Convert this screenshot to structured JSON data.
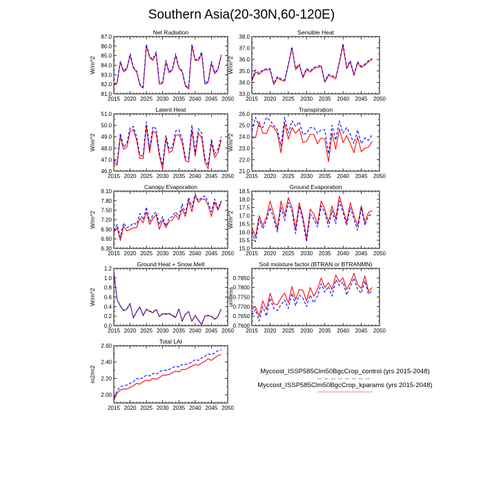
{
  "figure": {
    "title": "Southern Asia(20-30N,60-120E)"
  },
  "legend": {
    "entries": [
      {
        "label": "Myccost_ISSP585Clm50BgcCrop_control (yrs 2015-2048)",
        "color": "#0000ff",
        "style": "dashed"
      },
      {
        "label": "Myccost_ISSP585Clm50BgcCrop_kparams (yrs 2015-2048)",
        "color": "#ff0000",
        "style": "solid"
      }
    ]
  },
  "colors": {
    "control": "#0000ff",
    "kparams": "#ff0000",
    "gh_control": "#3333ff",
    "gh_kparams": "#8b0000"
  },
  "chart_data": [
    {
      "type": "line",
      "title": "Net Radiation",
      "ylabel": "W/m^2",
      "xlim": [
        2015,
        2050
      ],
      "xticks": [
        2015,
        2020,
        2025,
        2030,
        2035,
        2040,
        2045,
        2050
      ],
      "ylim": [
        81.0,
        87.0
      ],
      "yticks": [
        "81.0",
        "82.0",
        "83.0",
        "84.0",
        "85.0",
        "86.0",
        "87.0"
      ],
      "x_start": 2015,
      "series": [
        {
          "name": "control",
          "values": [
            82.0,
            82.2,
            84.4,
            83.4,
            83.7,
            85.2,
            83.8,
            83.4,
            82.0,
            81.7,
            86.2,
            84.9,
            84.6,
            85.4,
            82.1,
            82.2,
            84.5,
            83.3,
            83.6,
            85.2,
            83.8,
            83.4,
            81.9,
            81.6,
            86.2,
            84.6,
            84.6,
            85.4,
            82.1,
            82.3,
            84.4,
            83.2,
            83.6,
            85.1
          ]
        },
        {
          "name": "kparams",
          "values": [
            81.9,
            82.1,
            84.3,
            83.3,
            83.6,
            85.0,
            83.7,
            83.3,
            81.9,
            81.6,
            86.0,
            84.8,
            84.5,
            85.2,
            82.0,
            82.1,
            84.3,
            83.2,
            83.5,
            85.0,
            83.7,
            83.3,
            81.8,
            81.5,
            86.0,
            84.5,
            84.5,
            85.2,
            82.0,
            82.2,
            84.2,
            83.1,
            83.5,
            85.0
          ]
        }
      ]
    },
    {
      "type": "line",
      "title": "Sensible Heat",
      "ylabel": "W/m^2",
      "xlim": [
        2015,
        2050
      ],
      "xticks": [
        2015,
        2020,
        2025,
        2030,
        2035,
        2040,
        2045,
        2050
      ],
      "ylim": [
        33.0,
        38.0
      ],
      "yticks": [
        "33.0",
        "34.0",
        "35.0",
        "36.0",
        "37.0",
        "38.0"
      ],
      "x_start": 2015,
      "series": [
        {
          "name": "control",
          "values": [
            34.2,
            35.1,
            34.8,
            35.1,
            35.2,
            35.2,
            33.9,
            34.5,
            34.3,
            34.2,
            35.6,
            37.1,
            35.2,
            35.6,
            34.5,
            35.2,
            35.0,
            35.3,
            35.4,
            35.5,
            34.1,
            34.7,
            34.6,
            34.4,
            35.8,
            37.4,
            35.3,
            35.9,
            34.7,
            35.8,
            35.4,
            35.6,
            35.9,
            36.1
          ]
        },
        {
          "name": "kparams",
          "values": [
            34.1,
            34.9,
            34.7,
            35.0,
            35.1,
            35.1,
            33.8,
            34.4,
            34.2,
            34.1,
            35.5,
            37.0,
            35.1,
            35.5,
            34.4,
            35.1,
            34.9,
            35.2,
            35.3,
            35.4,
            34.0,
            34.6,
            34.5,
            34.3,
            35.7,
            37.2,
            35.2,
            35.8,
            34.6,
            35.7,
            35.3,
            35.5,
            35.8,
            36.0
          ]
        }
      ]
    },
    {
      "type": "line",
      "title": "Latent Heat",
      "ylabel": "W/m^2",
      "xlim": [
        2015,
        2050
      ],
      "xticks": [
        2015,
        2020,
        2025,
        2030,
        2035,
        2040,
        2045,
        2050
      ],
      "ylim": [
        46.0,
        51.0
      ],
      "yticks": [
        "46.0",
        "47.0",
        "48.0",
        "49.0",
        "50.0",
        "51.0"
      ],
      "x_start": 2015,
      "series": [
        {
          "name": "control",
          "values": [
            47.0,
            46.7,
            49.3,
            48.1,
            48.4,
            49.8,
            49.9,
            49.0,
            47.4,
            47.3,
            50.3,
            47.9,
            49.9,
            49.7,
            47.6,
            46.5,
            49.1,
            47.9,
            48.1,
            49.5,
            49.6,
            48.8,
            47.2,
            47.1,
            50.0,
            47.6,
            49.7,
            49.3,
            47.1,
            46.5,
            48.8,
            47.5,
            47.9,
            49.0
          ]
        },
        {
          "name": "kparams",
          "values": [
            46.8,
            46.5,
            49.0,
            47.9,
            48.1,
            49.5,
            49.6,
            48.7,
            47.1,
            47.1,
            49.9,
            47.6,
            49.5,
            49.3,
            47.3,
            46.2,
            48.8,
            47.6,
            47.8,
            49.1,
            49.2,
            48.5,
            46.9,
            46.8,
            49.6,
            47.3,
            49.3,
            48.9,
            46.8,
            46.2,
            48.5,
            47.2,
            47.6,
            48.7
          ]
        }
      ]
    },
    {
      "type": "line",
      "title": "Transpiration",
      "ylabel": "W/m^2",
      "xlim": [
        2015,
        2050
      ],
      "xticks": [
        2015,
        2020,
        2025,
        2030,
        2035,
        2040,
        2045,
        2050
      ],
      "ylim": [
        21.0,
        26.0
      ],
      "yticks": [
        "21.0",
        "22.0",
        "23.0",
        "24.0",
        "25.0",
        "26.0"
      ],
      "x_start": 2015,
      "series": [
        {
          "name": "control",
          "values": [
            24.5,
            25.7,
            24.9,
            24.8,
            25.7,
            25.4,
            25.0,
            24.6,
            23.2,
            25.7,
            24.3,
            25.4,
            24.9,
            25.3,
            24.2,
            24.3,
            24.8,
            24.8,
            24.3,
            24.6,
            24.6,
            22.5,
            25.0,
            23.7,
            25.4,
            24.3,
            24.8,
            24.2,
            23.4,
            24.6,
            23.4,
            23.9,
            23.7,
            24.2
          ]
        },
        {
          "name": "kparams",
          "values": [
            23.9,
            23.9,
            25.3,
            24.3,
            24.3,
            25.0,
            24.8,
            24.3,
            22.6,
            25.2,
            23.8,
            24.8,
            24.3,
            24.7,
            23.5,
            23.6,
            24.2,
            24.2,
            23.4,
            23.9,
            23.8,
            21.8,
            24.3,
            22.9,
            24.7,
            23.5,
            24.1,
            23.4,
            22.6,
            24.0,
            22.7,
            23.0,
            23.1,
            23.6
          ]
        }
      ]
    },
    {
      "type": "line",
      "title": "Canopy Evaporation",
      "ylabel": "W/m^2",
      "xlim": [
        2015,
        2050
      ],
      "xticks": [
        2015,
        2020,
        2025,
        2030,
        2035,
        2040,
        2045,
        2050
      ],
      "ylim": [
        6.3,
        8.1
      ],
      "yticks": [
        "6.30",
        "6.60",
        "6.90",
        "7.20",
        "7.50",
        "7.80",
        "8.10"
      ],
      "x_start": 2015,
      "series": [
        {
          "name": "control",
          "values": [
            6.85,
            7.05,
            6.65,
            7.1,
            6.95,
            7.0,
            7.1,
            7.05,
            7.4,
            7.2,
            7.6,
            7.15,
            7.35,
            7.45,
            7.05,
            7.3,
            7.0,
            7.25,
            7.3,
            7.45,
            7.3,
            7.7,
            7.4,
            7.9,
            7.6,
            8.0,
            7.8,
            7.9,
            7.95,
            7.75,
            7.45,
            7.85,
            7.55,
            7.8
          ]
        },
        {
          "name": "kparams",
          "values": [
            6.8,
            6.95,
            6.55,
            7.0,
            6.85,
            6.9,
            6.95,
            6.95,
            7.25,
            7.1,
            7.45,
            7.05,
            7.25,
            7.35,
            6.9,
            7.2,
            6.95,
            7.15,
            7.2,
            7.35,
            7.2,
            7.55,
            7.3,
            7.8,
            7.45,
            7.95,
            7.75,
            7.85,
            7.85,
            7.65,
            7.3,
            7.75,
            7.5,
            7.75
          ]
        }
      ]
    },
    {
      "type": "line",
      "title": "Ground Evaporation",
      "ylabel": "W/m^2",
      "xlim": [
        2015,
        2050
      ],
      "xticks": [
        2015,
        2020,
        2025,
        2030,
        2035,
        2040,
        2045,
        2050
      ],
      "ylim": [
        15.0,
        18.5
      ],
      "yticks": [
        "15.0",
        "15.5",
        "16.0",
        "16.5",
        "17.0",
        "17.5",
        "18.0",
        "18.5"
      ],
      "x_start": 2015,
      "series": [
        {
          "name": "control",
          "values": [
            16.0,
            15.4,
            16.8,
            16.2,
            16.7,
            17.5,
            16.8,
            16.0,
            17.5,
            16.7,
            17.8,
            17.3,
            15.9,
            17.6,
            16.7,
            15.4,
            17.1,
            16.8,
            16.3,
            17.6,
            17.2,
            16.3,
            17.3,
            16.5,
            17.9,
            17.2,
            16.4,
            17.5,
            16.8,
            16.1,
            17.5,
            16.4,
            17.0,
            17.1
          ]
        },
        {
          "name": "kparams",
          "values": [
            16.3,
            15.7,
            17.0,
            16.4,
            16.9,
            17.9,
            17.1,
            16.2,
            17.9,
            17.0,
            18.1,
            17.5,
            16.2,
            17.8,
            16.9,
            15.6,
            17.4,
            17.1,
            16.5,
            17.9,
            17.4,
            16.6,
            17.6,
            16.8,
            18.2,
            17.4,
            16.6,
            17.8,
            17.0,
            16.4,
            17.6,
            16.6,
            17.2,
            17.3
          ]
        }
      ]
    },
    {
      "type": "line",
      "title": "Ground Heat + Snow Melt",
      "ylabel": "W/m^2",
      "xlim": [
        2015,
        2050
      ],
      "xticks": [
        2015,
        2020,
        2025,
        2030,
        2035,
        2040,
        2045,
        2050
      ],
      "ylim": [
        0.0,
        1.2
      ],
      "yticks": [
        "0.0",
        "0.2",
        "0.4",
        "0.6",
        "0.8",
        "1.0",
        "1.2"
      ],
      "x_start": 2015,
      "series": [
        {
          "name": "control",
          "values": [
            1.15,
            0.55,
            0.42,
            0.32,
            0.36,
            0.47,
            0.17,
            0.3,
            0.4,
            0.22,
            0.35,
            0.31,
            0.28,
            0.35,
            0.2,
            0.26,
            0.25,
            0.26,
            0.22,
            0.18,
            0.36,
            0.1,
            0.25,
            0.3,
            0.1,
            0.22,
            0.12,
            0.03,
            0.21,
            0.22,
            0.2,
            0.14,
            0.2,
            0.36
          ]
        },
        {
          "name": "kparams",
          "values": [
            1.1,
            0.54,
            0.41,
            0.31,
            0.35,
            0.46,
            0.16,
            0.29,
            0.39,
            0.21,
            0.34,
            0.3,
            0.27,
            0.34,
            0.19,
            0.25,
            0.24,
            0.25,
            0.21,
            0.17,
            0.35,
            0.09,
            0.24,
            0.29,
            0.09,
            0.21,
            0.11,
            0.02,
            0.2,
            0.21,
            0.19,
            0.13,
            0.19,
            0.35
          ]
        }
      ]
    },
    {
      "type": "line",
      "title": "Soil moisture factor (BTRAN or BTRANMN)",
      "ylabel": "unitless",
      "xlim": [
        2015,
        2050
      ],
      "xticks": [
        2015,
        2020,
        2025,
        2030,
        2035,
        2040,
        2045,
        2050
      ],
      "ylim": [
        0.76,
        0.79
      ],
      "yticks": [
        "0.7600",
        "0.7650",
        "0.7700",
        "0.7750",
        "0.7800",
        "0.7850"
      ],
      "x_start": 2015,
      "series": [
        {
          "name": "control",
          "values": [
            0.7655,
            0.7685,
            0.7625,
            0.77,
            0.765,
            0.7745,
            0.769,
            0.768,
            0.771,
            0.7735,
            0.769,
            0.777,
            0.7705,
            0.776,
            0.7745,
            0.77,
            0.776,
            0.772,
            0.7755,
            0.782,
            0.7775,
            0.7805,
            0.7755,
            0.784,
            0.781,
            0.783,
            0.776,
            0.7805,
            0.785,
            0.779,
            0.777,
            0.7835,
            0.7765,
            0.7785
          ]
        },
        {
          "name": "kparams",
          "values": [
            0.7685,
            0.77,
            0.765,
            0.773,
            0.7685,
            0.777,
            0.7715,
            0.771,
            0.7745,
            0.777,
            0.772,
            0.7805,
            0.7735,
            0.779,
            0.7785,
            0.773,
            0.78,
            0.7755,
            0.779,
            0.785,
            0.78,
            0.7825,
            0.779,
            0.7865,
            0.783,
            0.785,
            0.779,
            0.7825,
            0.7875,
            0.7815,
            0.7795,
            0.786,
            0.778,
            0.78
          ]
        }
      ]
    },
    {
      "type": "line",
      "title": "Total LAI",
      "ylabel": "m2/m2",
      "xlim": [
        2015,
        2050
      ],
      "xticks": [
        2015,
        2020,
        2025,
        2030,
        2035,
        2040,
        2045,
        2050
      ],
      "ylim": [
        1.9,
        2.6
      ],
      "yticks": [
        "2.00",
        "2.20",
        "2.40",
        "2.60"
      ],
      "x_start": 2015,
      "series": [
        {
          "name": "control",
          "values": [
            1.96,
            2.05,
            2.1,
            2.11,
            2.12,
            2.14,
            2.16,
            2.2,
            2.19,
            2.21,
            2.24,
            2.23,
            2.26,
            2.25,
            2.28,
            2.3,
            2.3,
            2.31,
            2.33,
            2.35,
            2.34,
            2.37,
            2.37,
            2.38,
            2.4,
            2.43,
            2.42,
            2.45,
            2.47,
            2.5,
            2.49,
            2.51,
            2.54,
            2.55
          ]
        },
        {
          "name": "kparams",
          "values": [
            1.93,
            2.02,
            2.06,
            2.07,
            2.07,
            2.09,
            2.11,
            2.14,
            2.13,
            2.16,
            2.18,
            2.17,
            2.2,
            2.19,
            2.21,
            2.24,
            2.24,
            2.25,
            2.27,
            2.29,
            2.28,
            2.31,
            2.31,
            2.33,
            2.35,
            2.37,
            2.36,
            2.39,
            2.41,
            2.44,
            2.42,
            2.45,
            2.48,
            2.49
          ]
        }
      ]
    }
  ]
}
